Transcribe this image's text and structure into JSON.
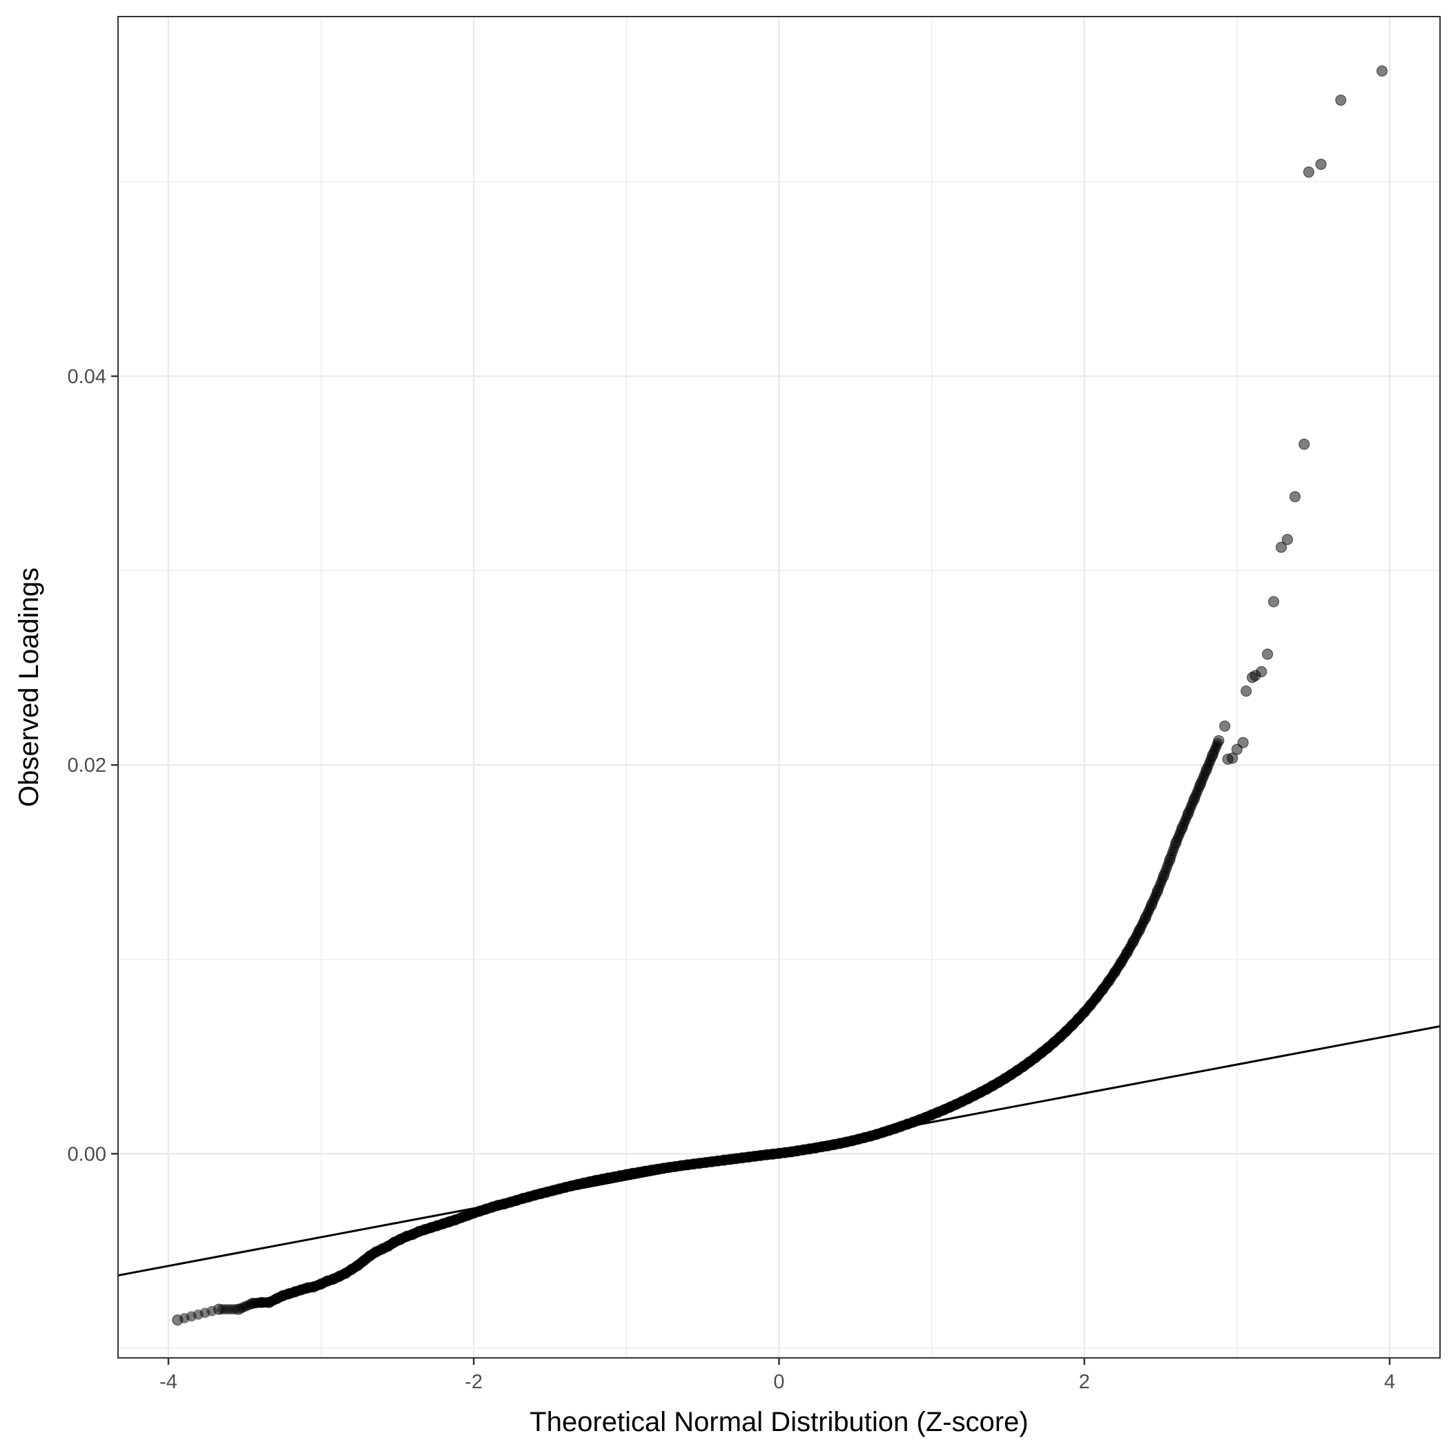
{
  "chart_data": {
    "type": "scatter",
    "title": "",
    "xlabel": "Theoretical Normal Distribution (Z-score)",
    "ylabel": "Observed Loadings",
    "xlim": [
      -4.33,
      4.33
    ],
    "ylim": [
      -0.0105,
      0.0585
    ],
    "x_ticks": [
      -4,
      -2,
      0,
      2,
      4
    ],
    "x_tick_labels": [
      "-4",
      "-2",
      "0",
      "2",
      "4"
    ],
    "y_ticks": [
      0.0,
      0.02,
      0.04
    ],
    "y_tick_labels": [
      "0.00",
      "0.02",
      "0.04"
    ],
    "grid": true,
    "theme": "black-and-white",
    "colors": {
      "points": "#000000",
      "point_opacity": 0.5,
      "line": "#000000",
      "grid": "#ebebeb",
      "panel_border": "#333333"
    },
    "reference_line": {
      "intercept": 0.00015,
      "slope": 0.00148
    },
    "series": [
      {
        "kind": "points",
        "points": [
          [
            -3.94,
            -0.00855
          ],
          [
            -3.67,
            -0.008
          ],
          [
            -3.54,
            -0.008
          ],
          [
            -3.45,
            -0.0077
          ],
          [
            -3.39,
            -0.00765
          ],
          [
            -3.34,
            -0.00765
          ],
          [
            -3.29,
            -0.00745
          ],
          [
            -3.25,
            -0.0073
          ],
          [
            -3.21,
            -0.0072
          ],
          [
            -3.17,
            -0.0071
          ],
          [
            -3.13,
            -0.007
          ],
          [
            -3.09,
            -0.0069
          ],
          [
            -3.05,
            -0.00685
          ],
          [
            -3.0,
            -0.0067
          ],
          [
            -2.96,
            -0.00655
          ],
          [
            -2.92,
            -0.00645
          ],
          [
            -2.88,
            -0.0063
          ],
          [
            -2.84,
            -0.00615
          ],
          [
            -2.8,
            -0.00595
          ],
          [
            -2.76,
            -0.00575
          ],
          [
            -2.72,
            -0.0055
          ],
          [
            -2.68,
            -0.00525
          ],
          [
            -2.64,
            -0.00505
          ],
          [
            -2.6,
            -0.0049
          ],
          [
            -2.56,
            -0.00475
          ],
          [
            -2.52,
            -0.00455
          ],
          [
            -2.48,
            -0.0044
          ],
          [
            -2.44,
            -0.00425
          ],
          [
            -2.4,
            -0.00415
          ],
          [
            -2.36,
            -0.004
          ],
          [
            -2.32,
            -0.0039
          ],
          [
            -2.28,
            -0.0038
          ],
          [
            -2.24,
            -0.0037
          ],
          [
            -2.2,
            -0.0036
          ],
          [
            -2.16,
            -0.0035
          ],
          [
            -2.12,
            -0.0034
          ],
          [
            -2.08,
            -0.00328
          ],
          [
            -2.04,
            -0.00317
          ],
          [
            -2.0,
            -0.00305
          ],
          [
            -1.96,
            -0.00295
          ],
          [
            -1.92,
            -0.00285
          ],
          [
            -1.88,
            -0.00275
          ],
          [
            -1.84,
            -0.00265
          ],
          [
            -1.8,
            -0.00258
          ],
          [
            -1.76,
            -0.00249
          ],
          [
            -1.72,
            -0.0024
          ],
          [
            -1.68,
            -0.0023
          ],
          [
            -1.64,
            -0.00222
          ],
          [
            -1.6,
            -0.00213
          ],
          [
            -1.56,
            -0.00205
          ],
          [
            -1.52,
            -0.00197
          ],
          [
            -1.48,
            -0.00189
          ],
          [
            -1.44,
            -0.00181
          ],
          [
            -1.4,
            -0.00173
          ],
          [
            -1.36,
            -0.00165
          ],
          [
            -1.32,
            -0.00158
          ],
          [
            -1.28,
            -0.00151
          ],
          [
            -1.24,
            -0.00144
          ],
          [
            -1.2,
            -0.00137
          ],
          [
            -1.16,
            -0.00131
          ],
          [
            -1.12,
            -0.00125
          ],
          [
            -1.08,
            -0.00119
          ],
          [
            -1.04,
            -0.00113
          ],
          [
            -1.0,
            -0.00107
          ],
          [
            -0.96,
            -0.00101
          ],
          [
            -0.92,
            -0.00096
          ],
          [
            -0.88,
            -0.0009
          ],
          [
            -0.84,
            -0.00085
          ],
          [
            -0.8,
            -0.0008
          ],
          [
            -0.76,
            -0.00075
          ],
          [
            -0.72,
            -0.0007
          ],
          [
            -0.68,
            -0.00066
          ],
          [
            -0.64,
            -0.00061
          ],
          [
            -0.6,
            -0.00057
          ],
          [
            -0.56,
            -0.00053
          ],
          [
            -0.52,
            -0.00049
          ],
          [
            -0.48,
            -0.00045
          ],
          [
            -0.44,
            -0.00041
          ],
          [
            -0.4,
            -0.00037
          ],
          [
            -0.36,
            -0.00033
          ],
          [
            -0.32,
            -0.00029
          ],
          [
            -0.28,
            -0.00025
          ],
          [
            -0.24,
            -0.00021
          ],
          [
            -0.2,
            -0.00017
          ],
          [
            -0.16,
            -0.00013
          ],
          [
            -0.12,
            -9e-05
          ],
          [
            -0.08,
            -5e-05
          ],
          [
            -0.04,
            -2e-05
          ],
          [
            0.0,
            2e-05
          ],
          [
            0.04,
            6e-05
          ],
          [
            0.08,
            0.0001
          ],
          [
            0.12,
            0.00015
          ],
          [
            0.16,
            0.0002
          ],
          [
            0.2,
            0.00025
          ],
          [
            0.24,
            0.0003
          ],
          [
            0.28,
            0.00036
          ],
          [
            0.32,
            0.00041
          ],
          [
            0.36,
            0.00047
          ],
          [
            0.4,
            0.00053
          ],
          [
            0.44,
            0.0006
          ],
          [
            0.48,
            0.00067
          ],
          [
            0.52,
            0.00075
          ],
          [
            0.56,
            0.00083
          ],
          [
            0.6,
            0.00091
          ],
          [
            0.64,
            0.001
          ],
          [
            0.68,
            0.0011
          ],
          [
            0.72,
            0.0012
          ],
          [
            0.76,
            0.0013
          ],
          [
            0.8,
            0.00141
          ],
          [
            0.84,
            0.00152
          ],
          [
            0.88,
            0.00163
          ],
          [
            0.92,
            0.00175
          ],
          [
            0.96,
            0.00187
          ],
          [
            1.0,
            0.002
          ],
          [
            1.04,
            0.00213
          ],
          [
            1.08,
            0.00226
          ],
          [
            1.12,
            0.0024
          ],
          [
            1.16,
            0.00254
          ],
          [
            1.2,
            0.00269
          ],
          [
            1.24,
            0.00284
          ],
          [
            1.28,
            0.003
          ],
          [
            1.32,
            0.00316
          ],
          [
            1.36,
            0.00332
          ],
          [
            1.4,
            0.0035
          ],
          [
            1.44,
            0.00368
          ],
          [
            1.48,
            0.00387
          ],
          [
            1.52,
            0.00407
          ],
          [
            1.56,
            0.00428
          ],
          [
            1.6,
            0.00449
          ],
          [
            1.64,
            0.00472
          ],
          [
            1.68,
            0.00495
          ],
          [
            1.72,
            0.0052
          ],
          [
            1.76,
            0.00545
          ],
          [
            1.8,
            0.00572
          ],
          [
            1.84,
            0.006
          ],
          [
            1.88,
            0.0063
          ],
          [
            1.92,
            0.00661
          ],
          [
            1.96,
            0.00694
          ],
          [
            2.0,
            0.00728
          ],
          [
            2.04,
            0.00765
          ],
          [
            2.08,
            0.00804
          ],
          [
            2.12,
            0.00845
          ],
          [
            2.16,
            0.00888
          ],
          [
            2.2,
            0.00934
          ],
          [
            2.24,
            0.00983
          ],
          [
            2.28,
            0.01035
          ],
          [
            2.32,
            0.0109
          ],
          [
            2.36,
            0.01149
          ],
          [
            2.4,
            0.01212
          ],
          [
            2.44,
            0.0128
          ],
          [
            2.48,
            0.01352
          ],
          [
            2.52,
            0.0143
          ],
          [
            2.56,
            0.01513
          ],
          [
            2.6,
            0.016
          ],
          [
            2.64,
            0.01675
          ],
          [
            2.68,
            0.0175
          ],
          [
            2.72,
            0.01825
          ],
          [
            2.76,
            0.019
          ],
          [
            2.8,
            0.01975
          ],
          [
            2.84,
            0.0205
          ],
          [
            2.88,
            0.02125
          ],
          [
            2.92,
            0.022
          ],
          [
            2.94,
            0.0203
          ],
          [
            2.97,
            0.02035
          ],
          [
            3.0,
            0.0208
          ],
          [
            3.04,
            0.02115
          ],
          [
            3.06,
            0.0238
          ],
          [
            3.1,
            0.0245
          ],
          [
            3.12,
            0.0246
          ],
          [
            3.16,
            0.0248
          ],
          [
            3.2,
            0.0257
          ],
          [
            3.24,
            0.0284
          ],
          [
            3.29,
            0.0312
          ],
          [
            3.33,
            0.0316
          ],
          [
            3.38,
            0.0338
          ],
          [
            3.44,
            0.0365
          ],
          [
            3.47,
            0.0505
          ],
          [
            3.55,
            0.0509
          ],
          [
            3.68,
            0.0542
          ],
          [
            3.95,
            0.0557
          ]
        ]
      }
    ]
  }
}
